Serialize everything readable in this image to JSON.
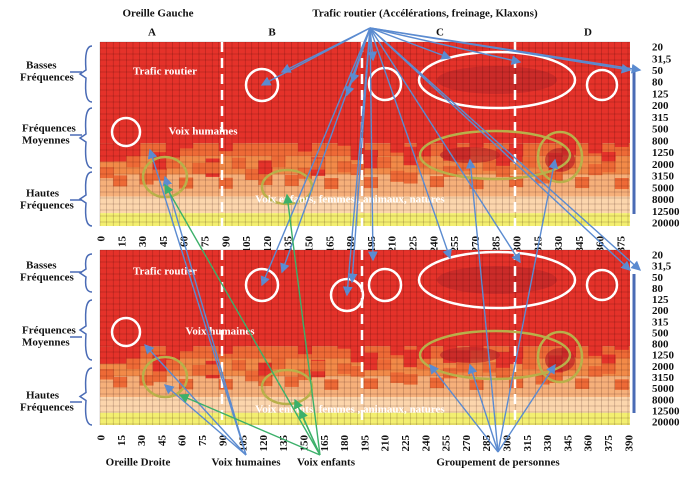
{
  "header": {
    "left": "Oreille Gauche",
    "center": "Trafic routier (Accélérations, freinage, Klaxons)",
    "sections": [
      "A",
      "B",
      "C",
      "D"
    ]
  },
  "band_labels": [
    [
      "Basses",
      "Fréquences"
    ],
    [
      "Fréquences",
      "Moyennes"
    ],
    [
      "Hautes",
      "Fréquences"
    ]
  ],
  "panels": [
    {
      "overlay": [
        "Trafic routier",
        "Voix humaines",
        "Voix enfants, femmes , animaux, natures"
      ],
      "x_ticks": [
        "0",
        "15",
        "30",
        "45",
        "60",
        "75",
        "90",
        "105",
        "120",
        "135",
        "150",
        "165",
        "180",
        "195",
        "210",
        "225",
        "240",
        "255",
        "270",
        "285",
        "300",
        "315",
        "330",
        "345",
        "360",
        "375"
      ]
    },
    {
      "overlay": [
        "Trafic routier",
        "Voix humaines",
        "Voix enfants, femmes , animaux, natures"
      ],
      "x_ticks": [
        "0",
        "15",
        "30",
        "45",
        "60",
        "75",
        "90",
        "105",
        "120",
        "135",
        "150",
        "165",
        "180",
        "195",
        "210",
        "225",
        "240",
        "255",
        "270",
        "285",
        "300",
        "315",
        "330",
        "345",
        "360",
        "375",
        "390"
      ]
    }
  ],
  "freq_ticks": [
    "20",
    "31,5",
    "50",
    "80",
    "125",
    "200",
    "315",
    "500",
    "800",
    "1250",
    "2000",
    "3150",
    "5000",
    "8000",
    "12500",
    "20000"
  ],
  "footer": [
    "Oreille Droite",
    "Voix humaines",
    "Voix enfants",
    "Groupement de personnes"
  ]
}
